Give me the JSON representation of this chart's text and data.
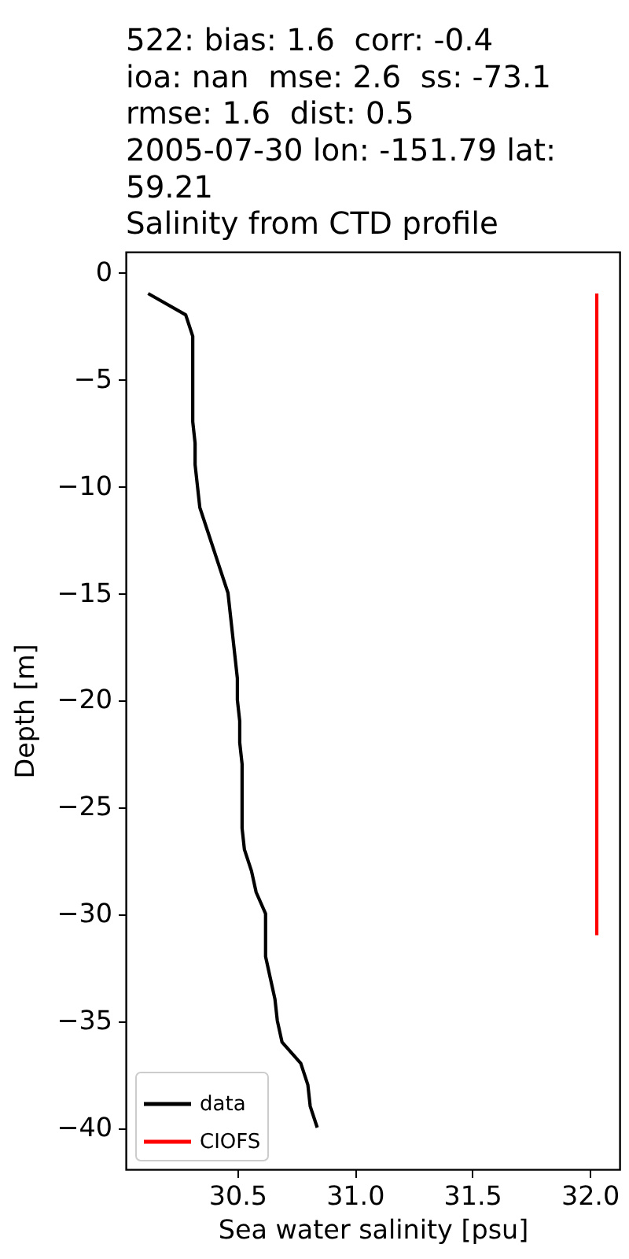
{
  "chart_data": {
    "type": "line",
    "title": "522: bias: 1.6  corr: -0.4\nioa: nan  mse: 2.6  ss: -73.1\nrmse: 1.6  dist: 0.5\n2005-07-30 lon: -151.79 lat:\n59.21\nSalinity from CTD profile",
    "xlabel": "Sea water salinity [psu]",
    "ylabel": "Depth [m]",
    "xlim": [
      30.025,
      32.127
    ],
    "ylim": [
      -41.95,
      0.95
    ],
    "xticks": [
      30.5,
      {
        "value": 31,
        "label": "31.0"
      },
      31.5,
      {
        "value": 32,
        "label": "32.0"
      }
    ],
    "yticks": [
      0,
      {
        "value": -5,
        "label": "−5"
      },
      {
        "value": -10,
        "label": "−10"
      },
      {
        "value": -15,
        "label": "−15"
      },
      {
        "value": -20,
        "label": "−20"
      },
      {
        "value": -25,
        "label": "−25"
      },
      {
        "value": -30,
        "label": "−30"
      },
      {
        "value": -35,
        "label": "−35"
      },
      {
        "value": -40,
        "label": "−40"
      }
    ],
    "legend": "bottom left",
    "series": [
      {
        "name": "data",
        "color": "#000000",
        "x": [
          30.12,
          30.28,
          30.31,
          30.31,
          30.31,
          30.31,
          30.31,
          30.32,
          30.32,
          30.33,
          30.34,
          30.37,
          30.4,
          30.43,
          30.46,
          30.47,
          30.48,
          30.49,
          30.5,
          30.5,
          30.51,
          30.51,
          30.52,
          30.52,
          30.52,
          30.52,
          30.53,
          30.56,
          30.58,
          30.62,
          30.62,
          30.62,
          30.64,
          30.66,
          30.67,
          30.69,
          30.77,
          30.8,
          30.81,
          30.84
        ],
        "values": [
          -1,
          -2,
          -3,
          -4,
          -5,
          -6,
          -7,
          -8,
          -9,
          -10,
          -11,
          -12,
          -13,
          -14,
          -15,
          -16,
          -17,
          -18,
          -19,
          -20,
          -21,
          -22,
          -23,
          -24,
          -25,
          -26,
          -27,
          -28,
          -29,
          -30,
          -31,
          -32,
          -33,
          -34,
          -35,
          -36,
          -37,
          -38,
          -39,
          -40
        ]
      },
      {
        "name": "CIOFS",
        "color": "#ff0000",
        "x": [
          32.03,
          32.03
        ],
        "values": [
          -1,
          -31
        ]
      }
    ]
  }
}
